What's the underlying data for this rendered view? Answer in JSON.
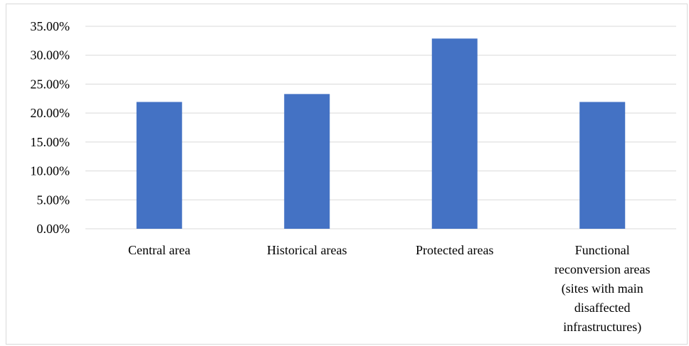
{
  "chart_data": {
    "type": "bar",
    "categories": [
      "Central area",
      "Historical areas",
      "Protected areas",
      "Functional reconversion areas (sites with main disaffected infrastructures)"
    ],
    "category_label_lines": [
      [
        "Central area"
      ],
      [
        "Historical areas"
      ],
      [
        "Protected areas"
      ],
      [
        "Functional",
        "reconversion areas",
        "(sites with main",
        "disaffected",
        "infrastructures)"
      ]
    ],
    "values": [
      21.92,
      23.29,
      32.88,
      21.92
    ],
    "ylim": [
      0,
      35
    ],
    "yticks": [
      0,
      5,
      10,
      15,
      20,
      25,
      30,
      35
    ],
    "ytick_labels": [
      "0.00%",
      "5.00%",
      "10.00%",
      "15.00%",
      "20.00%",
      "25.00%",
      "30.00%",
      "35.00%"
    ],
    "title": "",
    "xlabel": "",
    "ylabel": "",
    "grid": true,
    "legend": "none",
    "colors": {
      "bar": "#4472c4",
      "grid": "#d9d9d9",
      "border": "#d9d9d9"
    }
  }
}
